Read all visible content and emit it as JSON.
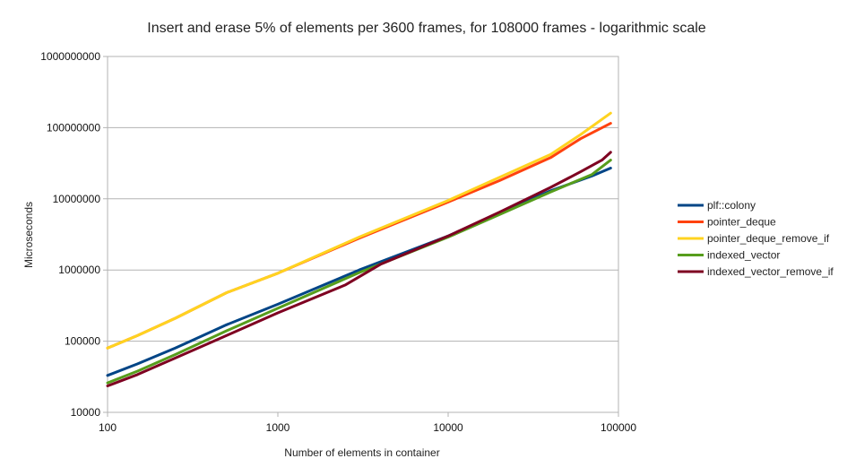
{
  "chart_data": {
    "type": "line",
    "title": "Insert and erase 5% of elements per 3600 frames, for 108000 frames - logarithmic scale",
    "xlabel": "Number of elements in container",
    "ylabel": "Microseconds",
    "x_scale": "log",
    "y_scale": "log",
    "xlim": [
      100,
      100000
    ],
    "ylim": [
      10000,
      1000000000
    ],
    "x_ticks": [
      "100",
      "1000",
      "10000",
      "100000"
    ],
    "y_ticks": [
      "10000",
      "100000",
      "1000000",
      "10000000",
      "100000000",
      "1000000000"
    ],
    "grid": "horizontal",
    "legend_position": "right",
    "series": [
      {
        "name": "plf::colony",
        "color": "#004586",
        "points": [
          [
            100,
            33000
          ],
          [
            150,
            48000
          ],
          [
            250,
            80000
          ],
          [
            500,
            170000
          ],
          [
            1000,
            330000
          ],
          [
            3000,
            1000000
          ],
          [
            10000,
            3000000
          ],
          [
            20000,
            6300000
          ],
          [
            40000,
            13000000
          ],
          [
            70000,
            21000000
          ],
          [
            90000,
            27000000
          ]
        ]
      },
      {
        "name": "pointer_deque",
        "color": "#ff420e",
        "points": [
          [
            100,
            80000
          ],
          [
            150,
            120000
          ],
          [
            250,
            210000
          ],
          [
            500,
            480000
          ],
          [
            1000,
            900000
          ],
          [
            3000,
            2800000
          ],
          [
            10000,
            9000000
          ],
          [
            20000,
            18000000
          ],
          [
            40000,
            38000000
          ],
          [
            60000,
            70000000
          ],
          [
            90000,
            115000000
          ]
        ]
      },
      {
        "name": "pointer_deque_remove_if",
        "color": "#ffd320",
        "points": [
          [
            100,
            80000
          ],
          [
            150,
            120000
          ],
          [
            250,
            210000
          ],
          [
            500,
            480000
          ],
          [
            1000,
            900000
          ],
          [
            3000,
            2900000
          ],
          [
            10000,
            9500000
          ],
          [
            20000,
            20000000
          ],
          [
            40000,
            42000000
          ],
          [
            60000,
            80000000
          ],
          [
            90000,
            160000000
          ]
        ]
      },
      {
        "name": "indexed_vector",
        "color": "#579d1c",
        "points": [
          [
            100,
            26000
          ],
          [
            150,
            38000
          ],
          [
            250,
            65000
          ],
          [
            500,
            140000
          ],
          [
            1000,
            290000
          ],
          [
            3000,
            920000
          ],
          [
            10000,
            2900000
          ],
          [
            20000,
            6000000
          ],
          [
            40000,
            12500000
          ],
          [
            70000,
            22000000
          ],
          [
            90000,
            35000000
          ]
        ]
      },
      {
        "name": "indexed_vector_remove_if",
        "color": "#7e0021",
        "points": [
          [
            100,
            23500
          ],
          [
            150,
            34000
          ],
          [
            250,
            58000
          ],
          [
            500,
            120000
          ],
          [
            1000,
            250000
          ],
          [
            2500,
            620000
          ],
          [
            4000,
            1200000
          ],
          [
            10000,
            3000000
          ],
          [
            20000,
            6500000
          ],
          [
            40000,
            14500000
          ],
          [
            60000,
            24000000
          ],
          [
            80000,
            35000000
          ],
          [
            90000,
            45000000
          ]
        ]
      }
    ]
  }
}
